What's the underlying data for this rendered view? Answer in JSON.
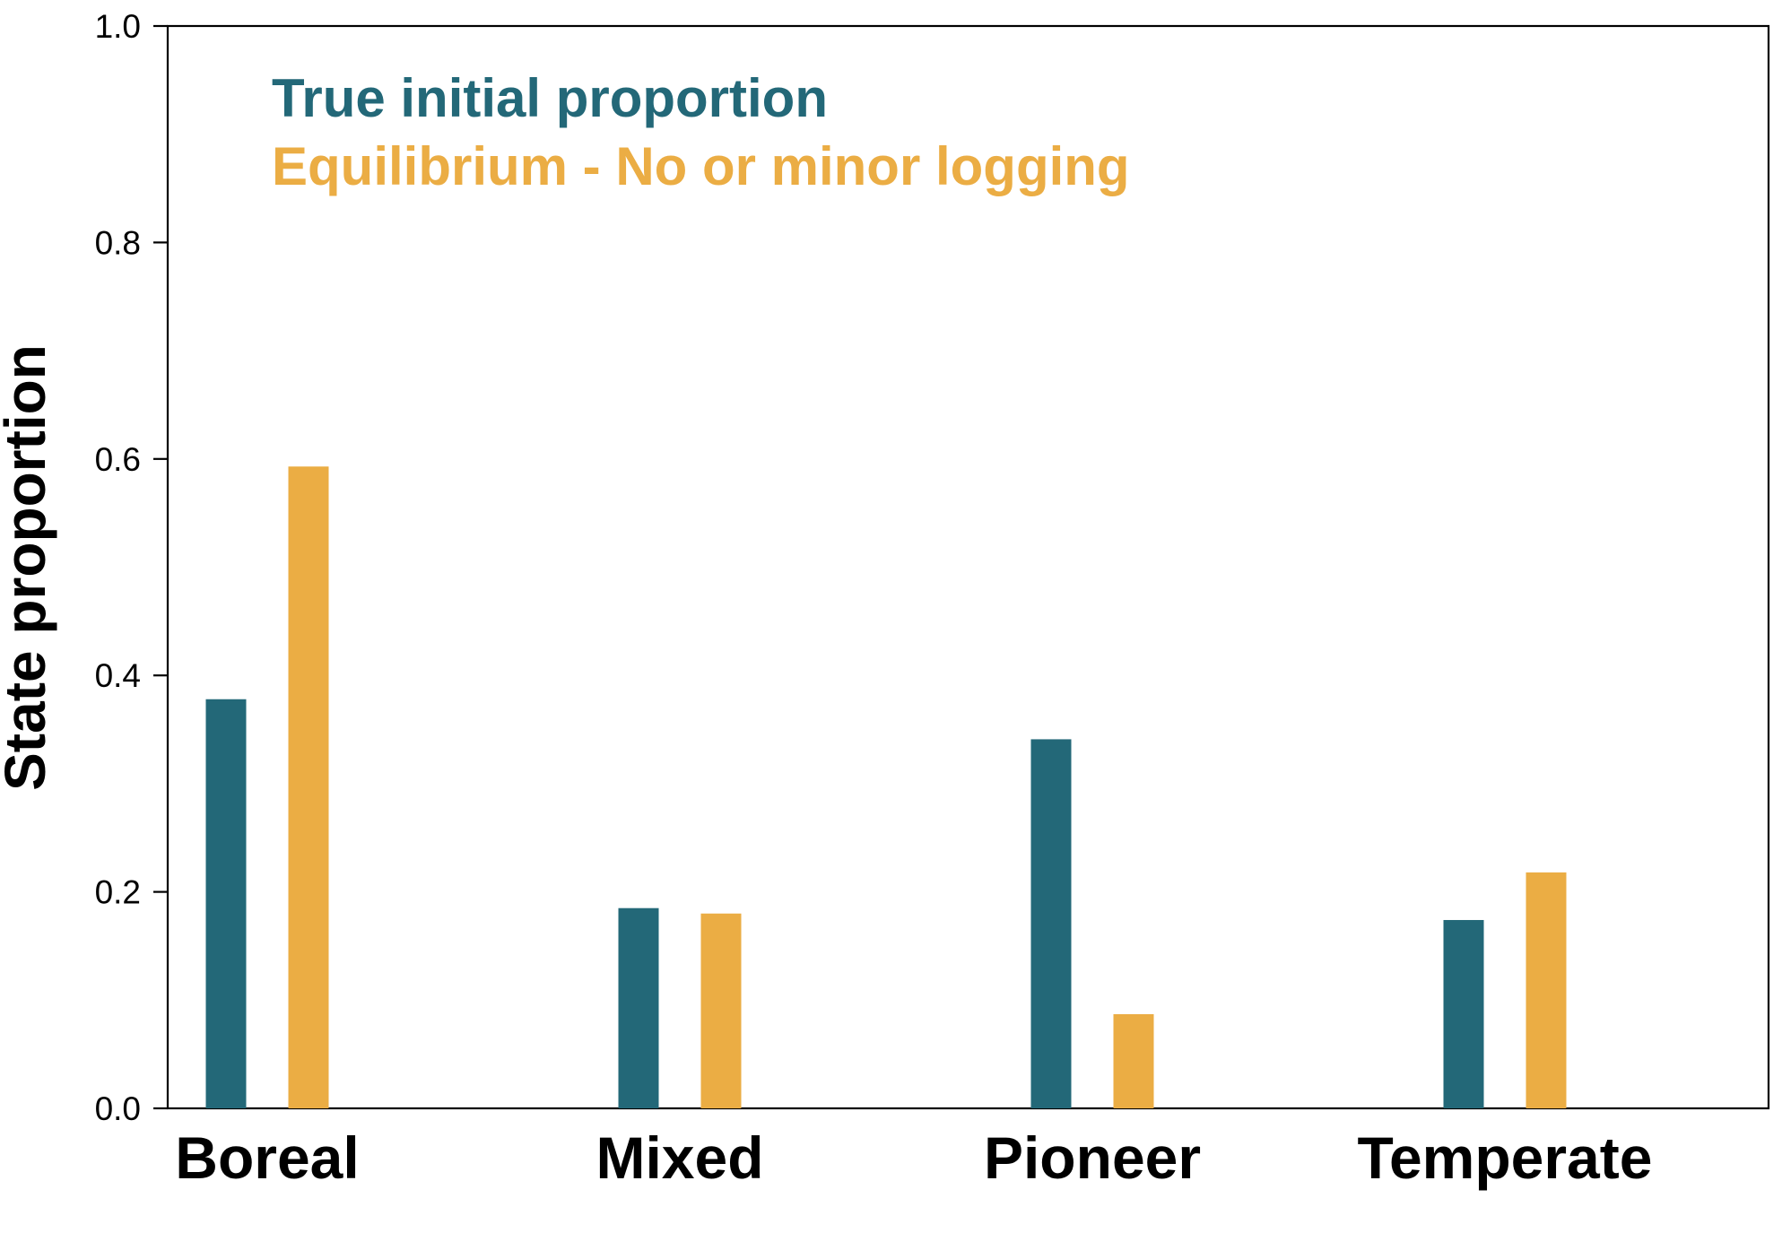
{
  "chart_data": {
    "type": "bar",
    "categories": [
      "Boreal",
      "Mixed",
      "Pioneer",
      "Temperate"
    ],
    "series": [
      {
        "name": "True initial proportion",
        "color": "#236878",
        "values": [
          0.378,
          0.185,
          0.341,
          0.174
        ]
      },
      {
        "name": "Equilibrium - No or minor logging",
        "color": "#EBAD44",
        "values": [
          0.593,
          0.18,
          0.087,
          0.218
        ]
      }
    ],
    "ylabel": "State proportion",
    "ylim": [
      0,
      1.0
    ],
    "yticks": [
      "0.0",
      "0.2",
      "0.4",
      "0.6",
      "0.8",
      "1.0"
    ],
    "grid": false,
    "legend_position": "top-left"
  }
}
